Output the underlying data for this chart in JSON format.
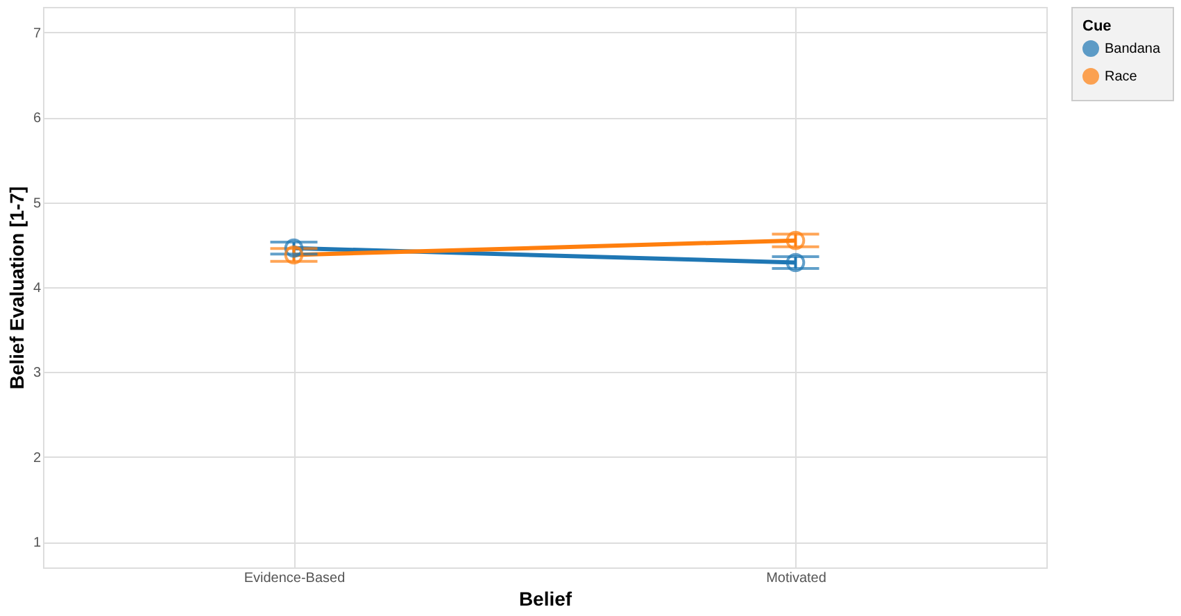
{
  "chart_data": {
    "type": "line",
    "xlabel": "Belief",
    "ylabel": "Belief Evaluation [1-7]",
    "legend_title": "Cue",
    "categories": [
      "Evidence-Based",
      "Motivated"
    ],
    "series": [
      {
        "name": "Bandana",
        "color": "#1f77b4",
        "values": [
          4.46,
          4.29
        ],
        "errors": [
          0.07,
          0.07
        ]
      },
      {
        "name": "Race",
        "color": "#ff7f0e",
        "values": [
          4.38,
          4.55
        ],
        "errors": [
          0.075,
          0.075
        ]
      }
    ],
    "ylim": [
      0.7,
      7.3
    ],
    "yticks": [
      1,
      2,
      3,
      4,
      5,
      6,
      7
    ],
    "grid": true,
    "legend": "right",
    "marker": "circle",
    "line_style": "solid"
  }
}
